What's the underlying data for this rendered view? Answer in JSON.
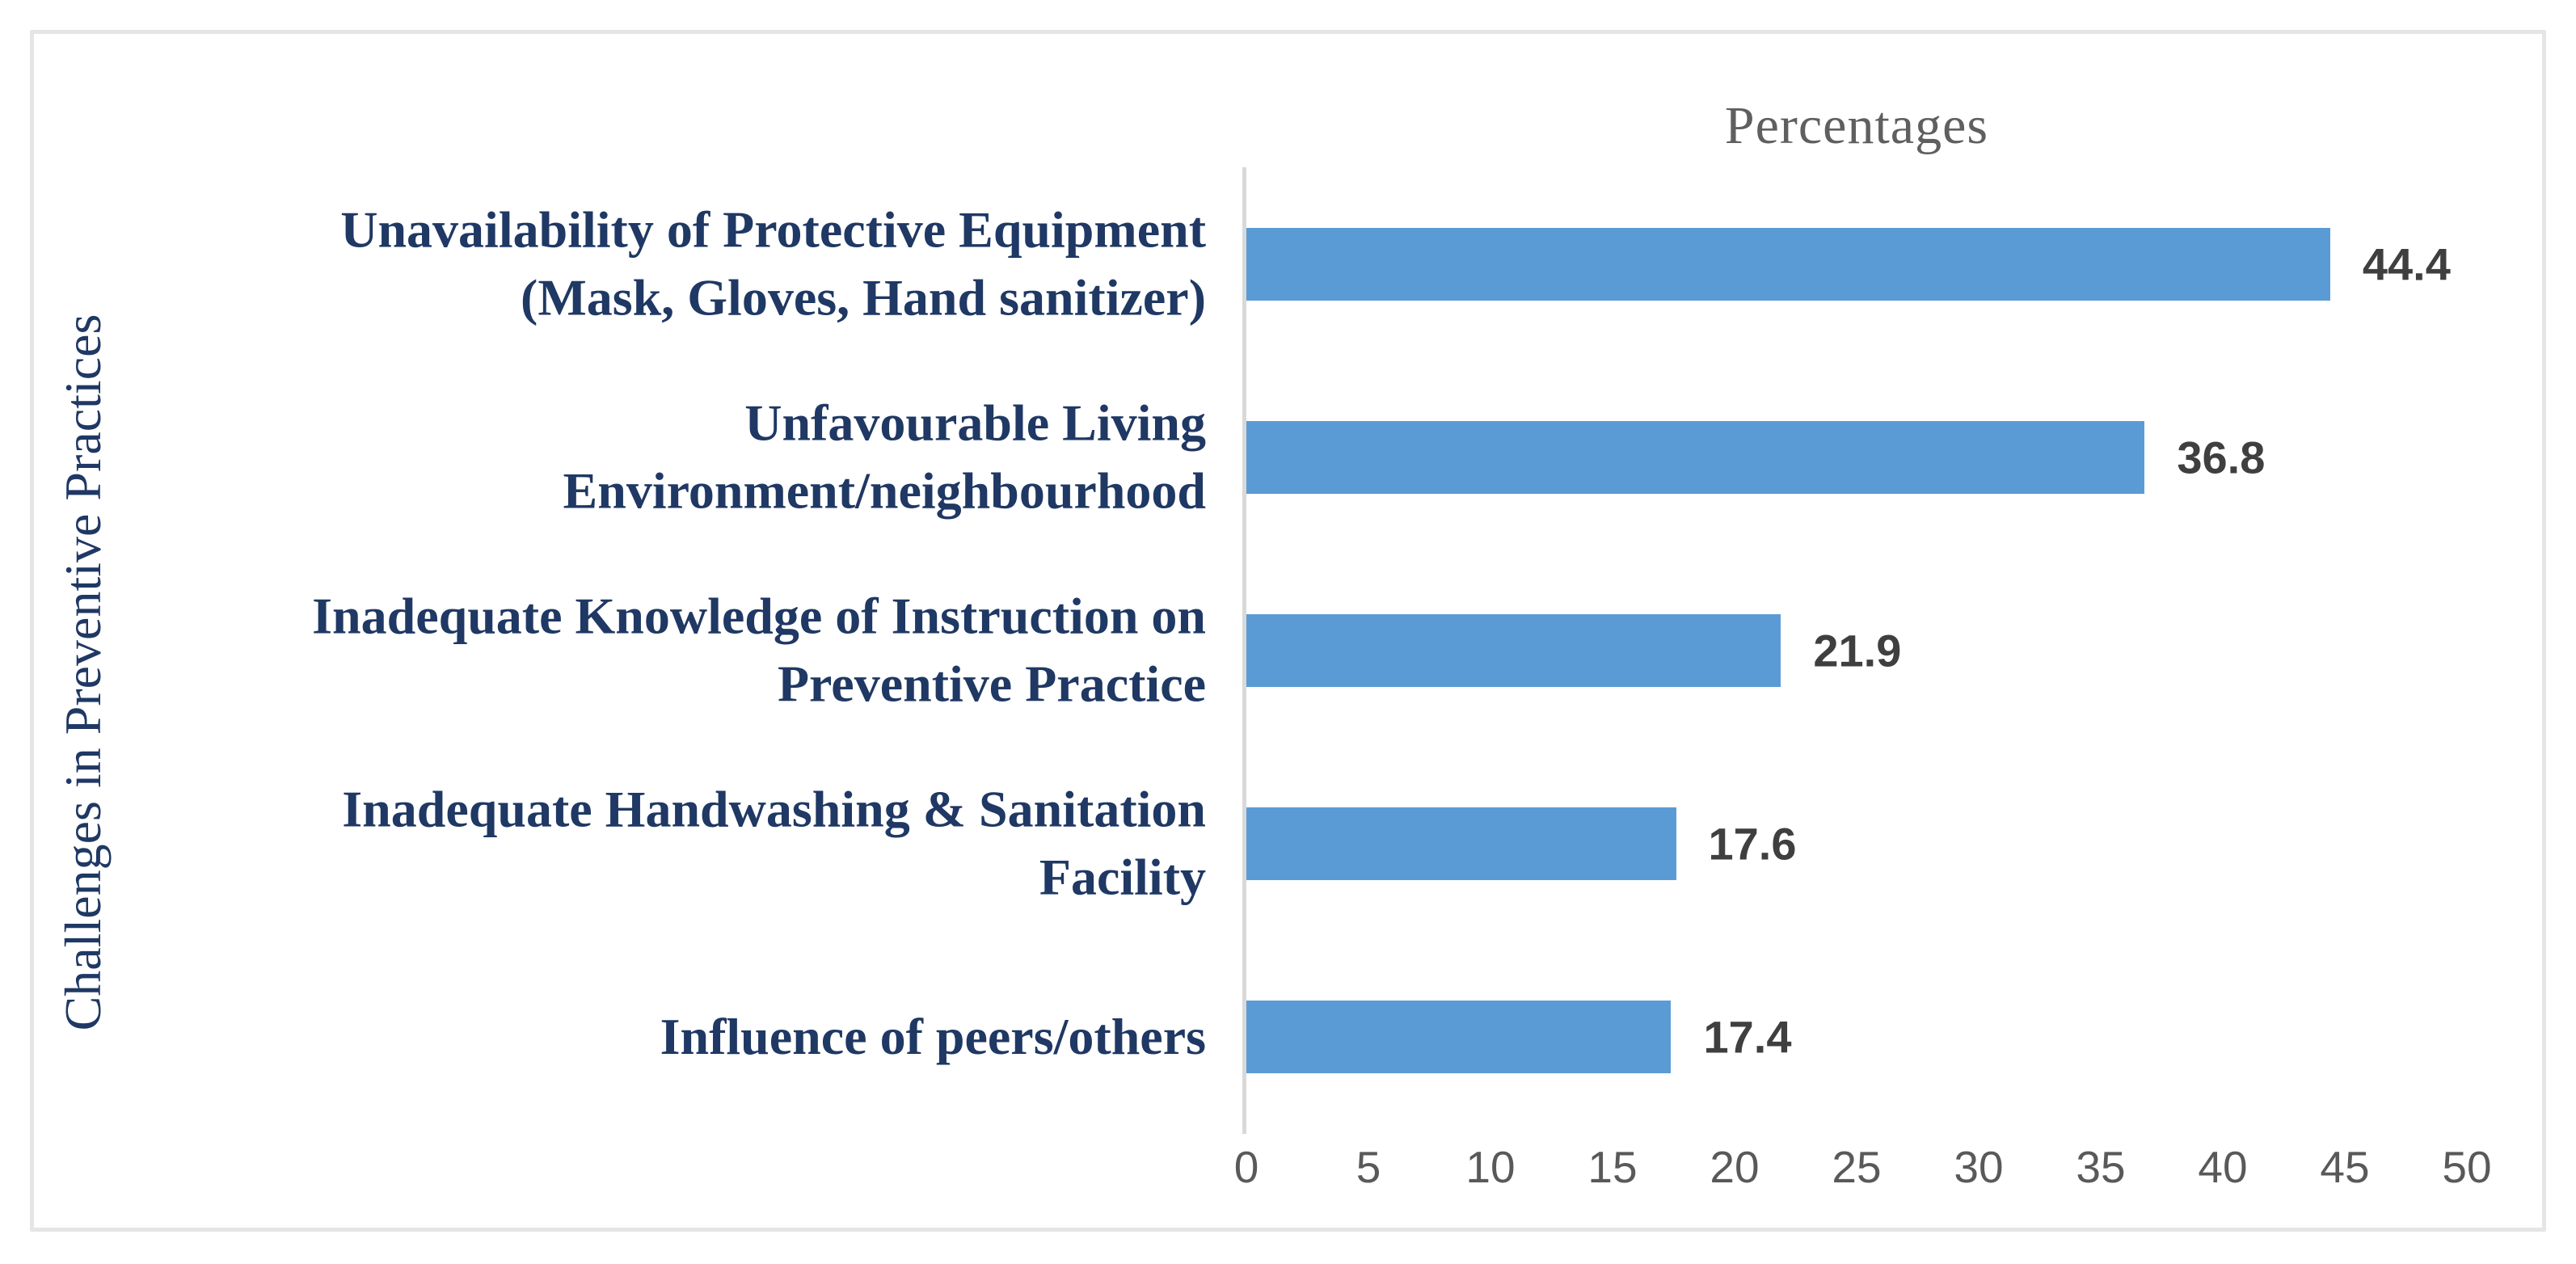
{
  "figure": {
    "background": "#ffffff",
    "border_color": "#e5e5e5"
  },
  "chart_data": {
    "type": "bar",
    "orientation": "horizontal",
    "title": "Percentages",
    "xlabel": "",
    "ylabel": "Challenges in Preventive Practices",
    "categories": [
      "Unavailability of Protective Equipment (Mask, Gloves, Hand sanitizer)",
      "Unfavourable Living Environment/neighbourhood",
      "Inadequate Knowledge of Instruction on Preventive Practice",
      "Inadequate Handwashing & Sanitation Facility",
      "Influence of peers/others"
    ],
    "category_lines": [
      "Unavailability of Protective Equipment\n(Mask, Gloves, Hand sanitizer)",
      "Unfavourable Living\nEnvironment/neighbourhood",
      "Inadequate Knowledge of Instruction on\nPreventive Practice",
      "Inadequate Handwashing & Sanitation\nFacility",
      "Influence of peers/others"
    ],
    "values": [
      44.4,
      36.8,
      21.9,
      17.6,
      17.4
    ],
    "data_labels": [
      "44.4",
      "36.8",
      "21.9",
      "17.6",
      "17.4"
    ],
    "xlim": [
      0,
      50
    ],
    "xticks": [
      0,
      5,
      10,
      15,
      20,
      25,
      30,
      35,
      40,
      45,
      50
    ],
    "grid": "off",
    "legend": "none",
    "colors": {
      "bar": "#5b9bd5",
      "category_label_text": "#1f3864",
      "axis_title_text": "#1f3864",
      "chart_title_text": "#5f5f5f",
      "tick_label_text": "#595959",
      "value_label_text": "#3f3f3f",
      "axis_line": "#d9d9d9",
      "border": "#e5e5e5"
    }
  }
}
